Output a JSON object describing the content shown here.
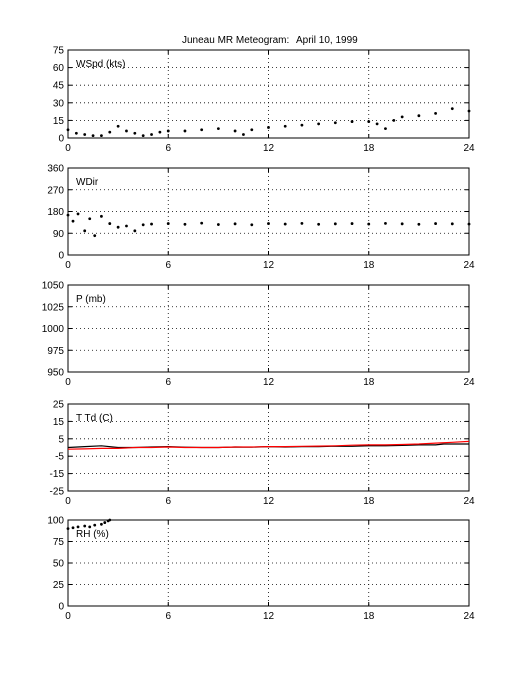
{
  "figure": {
    "title": "Juneau MR Meteogram:",
    "date": "April 10, 1999"
  },
  "chart_data": [
    {
      "type": "scatter",
      "label": "WSpd (kts)",
      "xlim": [
        0,
        24
      ],
      "ylim": [
        0,
        75
      ],
      "xticks": [
        0,
        6,
        12,
        18,
        24
      ],
      "yticks": [
        0,
        15,
        30,
        45,
        60,
        75
      ],
      "grid": true,
      "series": [
        {
          "color": "#000000",
          "x": [
            0,
            0.5,
            1,
            1.5,
            2,
            2.5,
            3,
            3.5,
            4,
            4.5,
            5,
            5.5,
            6,
            7,
            8,
            9,
            10,
            10.5,
            11,
            12,
            13,
            14,
            15,
            16,
            17,
            18,
            18.5,
            19,
            19.5,
            20,
            21,
            22,
            23,
            24
          ],
          "y": [
            7,
            4,
            3,
            2,
            2,
            5,
            10,
            6,
            4,
            2,
            3,
            5,
            6,
            6,
            7,
            8,
            6,
            3,
            7,
            9,
            10,
            11,
            12,
            13,
            14,
            14,
            12,
            8,
            15,
            18,
            19,
            21,
            25,
            23
          ]
        }
      ]
    },
    {
      "type": "scatter",
      "label": "WDir",
      "xlim": [
        0,
        24
      ],
      "ylim": [
        0,
        360
      ],
      "xticks": [
        0,
        6,
        12,
        18,
        24
      ],
      "yticks": [
        0,
        90,
        180,
        270,
        360
      ],
      "grid": true,
      "series": [
        {
          "color": "#000000",
          "x": [
            0,
            0.3,
            0.6,
            1,
            1.3,
            1.6,
            2,
            2.5,
            3,
            3.5,
            4,
            4.5,
            5,
            6,
            7,
            8,
            9,
            10,
            11,
            12,
            13,
            14,
            15,
            16,
            17,
            18,
            19,
            20,
            21,
            22,
            23,
            24
          ],
          "y": [
            165,
            140,
            170,
            100,
            150,
            80,
            160,
            130,
            115,
            120,
            100,
            125,
            128,
            130,
            127,
            132,
            126,
            129,
            125,
            130,
            128,
            131,
            127,
            129,
            130,
            128,
            131,
            129,
            127,
            130,
            129,
            128
          ]
        }
      ]
    },
    {
      "type": "line",
      "label": "P (mb)",
      "xlim": [
        0,
        24
      ],
      "ylim": [
        950,
        1050
      ],
      "xticks": [
        0,
        6,
        12,
        18,
        24
      ],
      "yticks": [
        950,
        975,
        1000,
        1025,
        1050
      ],
      "grid": true,
      "series": []
    },
    {
      "type": "line",
      "label": "T Td (C)",
      "xlim": [
        0,
        24
      ],
      "ylim": [
        -25,
        25
      ],
      "xticks": [
        0,
        6,
        12,
        18,
        24
      ],
      "yticks": [
        -25,
        -15,
        -5,
        5,
        15,
        25
      ],
      "grid": true,
      "series": [
        {
          "color": "#000000",
          "x": [
            0,
            1,
            2,
            3,
            4,
            5,
            6,
            7,
            8,
            9,
            10,
            11,
            12,
            13,
            14,
            15,
            16,
            17,
            18,
            19,
            20,
            21,
            22,
            22.5,
            23,
            24
          ],
          "y": [
            0,
            0.5,
            1,
            0,
            0,
            0.3,
            0.5,
            0.2,
            0,
            0,
            0.3,
            0.2,
            0.5,
            0.3,
            0.5,
            0.5,
            0.8,
            0.7,
            1,
            1,
            1.2,
            1.5,
            1.5,
            2,
            2,
            2
          ]
        },
        {
          "color": "#ff0000",
          "x": [
            0,
            1,
            2,
            3,
            4,
            5,
            6,
            7,
            8,
            9,
            10,
            11,
            12,
            13,
            14,
            15,
            16,
            17,
            18,
            19,
            20,
            21,
            22,
            23,
            24
          ],
          "y": [
            -1,
            -0.8,
            -0.5,
            -0.5,
            0,
            0,
            0.3,
            0,
            0,
            0,
            0.3,
            0.3,
            0.5,
            0.5,
            0.7,
            0.8,
            1,
            1.3,
            1.5,
            1.5,
            1.7,
            2,
            2.5,
            3,
            3.5
          ]
        }
      ]
    },
    {
      "type": "scatter",
      "label": "RH (%)",
      "xlim": [
        0,
        24
      ],
      "ylim": [
        0,
        100
      ],
      "xticks": [
        0,
        6,
        12,
        18,
        24
      ],
      "yticks": [
        0,
        25,
        50,
        75,
        100
      ],
      "grid": true,
      "series": [
        {
          "color": "#000000",
          "x": [
            0,
            0.3,
            0.6,
            1,
            1.3,
            1.6,
            2,
            2.2,
            2.4,
            2.5
          ],
          "y": [
            90,
            91,
            92,
            93,
            92,
            94,
            95,
            97,
            99,
            100
          ]
        }
      ]
    }
  ]
}
